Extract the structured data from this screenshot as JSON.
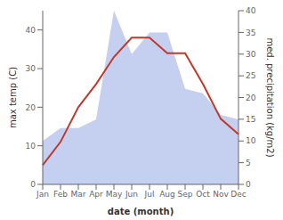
{
  "chart_data": {
    "type": "line",
    "categories": [
      "Jan",
      "Feb",
      "Mar",
      "Apr",
      "May",
      "Jun",
      "Jul",
      "Aug",
      "Sep",
      "Oct",
      "Nov",
      "Dec"
    ],
    "series": [
      {
        "type": "area",
        "color": "#c5cff0",
        "axis": "y2",
        "values": [
          10,
          13,
          13,
          15,
          40,
          30,
          35,
          35,
          22,
          21,
          16,
          15
        ]
      },
      {
        "type": "line",
        "color": "#c0392b",
        "values": [
          5,
          11,
          20,
          26,
          33,
          38,
          38,
          34,
          34,
          26,
          17,
          13
        ]
      }
    ],
    "xlabel": "date (month)",
    "ylabel": "max temp (C)",
    "y2label": "med. precipitation (kg/m2)",
    "ylim": [
      0,
      45
    ],
    "yticks": [
      0,
      10,
      20,
      30,
      40
    ],
    "y2lim": [
      0,
      40
    ],
    "y2ticks": [
      0,
      5,
      10,
      15,
      20,
      25,
      30,
      35,
      40
    ]
  }
}
